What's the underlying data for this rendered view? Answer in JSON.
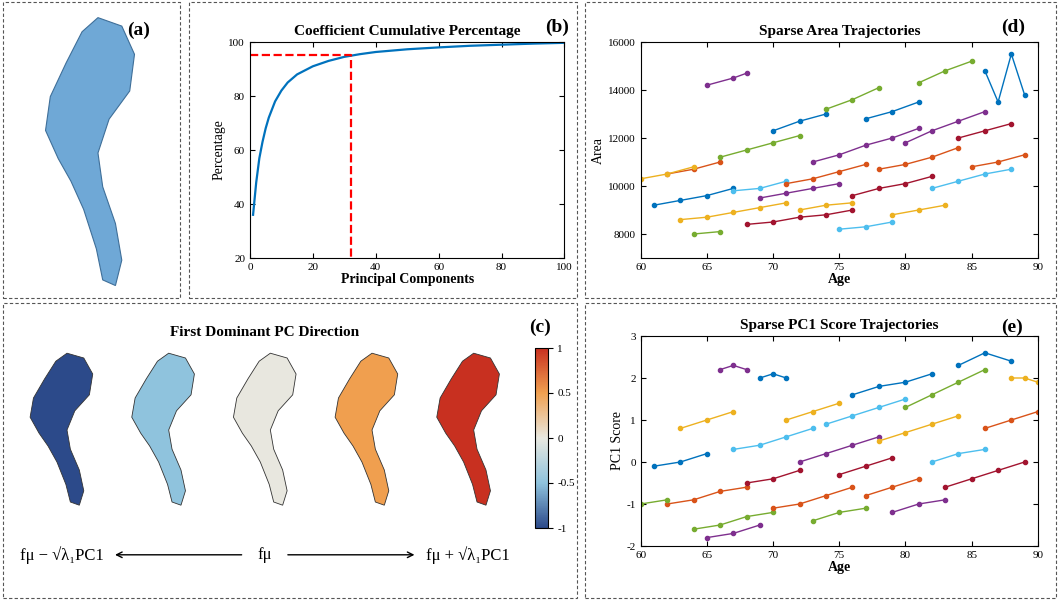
{
  "chart_data": [
    {
      "type": "mesh",
      "annotations": [
        "(a)"
      ],
      "color": "#6fa8d6"
    },
    {
      "type": "line",
      "title": "Coefficient Cumulative Percentage",
      "annotations": [
        "(b)"
      ],
      "x_label": "Principal Components",
      "y_label": "Percentage",
      "xlim": [
        0,
        100
      ],
      "xticks": [
        0,
        20,
        40,
        60,
        80,
        100
      ],
      "ylim": [
        20,
        100
      ],
      "yticks": [
        20,
        40,
        60,
        80,
        100
      ],
      "grid": false,
      "series": [
        {
          "color": "#0072BD",
          "line_style": "solid",
          "x": [
            1,
            2,
            3,
            4,
            5,
            6,
            8,
            10,
            12,
            15,
            20,
            25,
            30,
            35,
            40,
            50,
            60,
            70,
            80,
            90,
            100
          ],
          "values": [
            36,
            48,
            57,
            63,
            68,
            72,
            78,
            82,
            85,
            88,
            91,
            93,
            94.5,
            95.5,
            96.3,
            97.3,
            98,
            98.6,
            99,
            99.4,
            99.7
          ]
        },
        {
          "color": "#ff0000",
          "line_style": "dashed",
          "x": [
            0,
            32,
            32
          ],
          "values": [
            95,
            95,
            20
          ]
        }
      ]
    },
    {
      "type": "line",
      "title": "Sparse Area Trajectories",
      "annotations": [
        "(d)"
      ],
      "x_label": "Age",
      "y_label": "Area",
      "marker": "o",
      "xlim": [
        60,
        90
      ],
      "xticks": [
        60,
        65,
        70,
        75,
        80,
        85,
        90
      ],
      "ylim": [
        7000,
        16000
      ],
      "yticks": [
        8000,
        10000,
        12000,
        14000,
        16000
      ],
      "grid": false,
      "series": [
        {
          "color": "#0072BD",
          "x": [
            61,
            63,
            65,
            67
          ],
          "values": [
            9200,
            9400,
            9600,
            9900
          ]
        },
        {
          "color": "#D95319",
          "x": [
            62,
            64,
            66
          ],
          "values": [
            10500,
            10700,
            11000
          ]
        },
        {
          "color": "#EDB120",
          "x": [
            63,
            65,
            67,
            69,
            71
          ],
          "values": [
            8600,
            8700,
            8900,
            9100,
            9300
          ]
        },
        {
          "color": "#7E2F8E",
          "x": [
            65,
            67,
            68
          ],
          "values": [
            14200,
            14500,
            14700
          ]
        },
        {
          "color": "#77AC30",
          "x": [
            66,
            68,
            70,
            72
          ],
          "values": [
            11200,
            11500,
            11800,
            12100
          ]
        },
        {
          "color": "#4DBEEE",
          "x": [
            67,
            69,
            71
          ],
          "values": [
            9800,
            9900,
            10200
          ]
        },
        {
          "color": "#A2142F",
          "x": [
            68,
            70,
            72,
            74,
            76
          ],
          "values": [
            8400,
            8500,
            8700,
            8800,
            9000
          ]
        },
        {
          "color": "#0072BD",
          "x": [
            70,
            72,
            74
          ],
          "values": [
            12300,
            12700,
            13000
          ]
        },
        {
          "color": "#D95319",
          "x": [
            71,
            73,
            75,
            77
          ],
          "values": [
            10100,
            10300,
            10600,
            10900
          ]
        },
        {
          "color": "#EDB120",
          "x": [
            72,
            74,
            76
          ],
          "values": [
            9000,
            9200,
            9300
          ]
        },
        {
          "color": "#7E2F8E",
          "x": [
            73,
            75,
            77,
            79,
            81
          ],
          "values": [
            11000,
            11300,
            11700,
            12000,
            12400
          ]
        },
        {
          "color": "#77AC30",
          "x": [
            74,
            76,
            78
          ],
          "values": [
            13200,
            13600,
            14100
          ]
        },
        {
          "color": "#4DBEEE",
          "x": [
            75,
            77,
            79
          ],
          "values": [
            8200,
            8300,
            8500
          ]
        },
        {
          "color": "#A2142F",
          "x": [
            76,
            78,
            80,
            82
          ],
          "values": [
            9600,
            9900,
            10100,
            10400
          ]
        },
        {
          "color": "#0072BD",
          "x": [
            77,
            79,
            81
          ],
          "values": [
            12800,
            13100,
            13500
          ]
        },
        {
          "color": "#D95319",
          "x": [
            78,
            80,
            82,
            84
          ],
          "values": [
            10700,
            10900,
            11200,
            11600
          ]
        },
        {
          "color": "#EDB120",
          "x": [
            79,
            81,
            83
          ],
          "values": [
            8800,
            9000,
            9200
          ]
        },
        {
          "color": "#7E2F8E",
          "x": [
            80,
            82,
            84,
            86
          ],
          "values": [
            11800,
            12300,
            12700,
            13100
          ]
        },
        {
          "color": "#77AC30",
          "x": [
            81,
            83,
            85
          ],
          "values": [
            14300,
            14800,
            15200
          ]
        },
        {
          "color": "#4DBEEE",
          "x": [
            82,
            84,
            86,
            88
          ],
          "values": [
            9900,
            10200,
            10500,
            10700
          ]
        },
        {
          "color": "#A2142F",
          "x": [
            84,
            86,
            88
          ],
          "values": [
            12000,
            12300,
            12600
          ]
        },
        {
          "color": "#0072BD",
          "x": [
            86,
            87,
            88,
            89
          ],
          "values": [
            14800,
            13500,
            15500,
            13800
          ]
        },
        {
          "color": "#D95319",
          "x": [
            85,
            87,
            89
          ],
          "values": [
            10800,
            11000,
            11300
          ]
        },
        {
          "color": "#EDB120",
          "x": [
            60,
            62,
            64
          ],
          "values": [
            10300,
            10500,
            10800
          ]
        },
        {
          "color": "#7E2F8E",
          "x": [
            69,
            71,
            73,
            75
          ],
          "values": [
            9500,
            9700,
            9900,
            10100
          ]
        },
        {
          "color": "#77AC30",
          "x": [
            64,
            66
          ],
          "values": [
            8000,
            8100
          ]
        }
      ]
    },
    {
      "type": "shape_sequence",
      "title": "First Dominant PC Direction",
      "annotations": [
        "(c)"
      ],
      "categories": [
        "fμ − √λ₁PC1",
        null,
        "fμ",
        null,
        "fμ + √λ₁PC1"
      ],
      "values": [
        -1,
        -0.5,
        0,
        0.5,
        1
      ],
      "colorbar": {
        "range": [
          -1,
          1
        ],
        "ticks": [
          -1,
          -0.5,
          0,
          0.5,
          1
        ]
      }
    },
    {
      "type": "line",
      "title": "Sparse PC1 Score Trajectories",
      "annotations": [
        "(e)"
      ],
      "x_label": "Age",
      "y_label": "PC1 Score",
      "marker": "o",
      "xlim": [
        60,
        90
      ],
      "xticks": [
        60,
        65,
        70,
        75,
        80,
        85,
        90
      ],
      "ylim": [
        -2,
        3
      ],
      "yticks": [
        -2,
        -1,
        0,
        1,
        2,
        3
      ],
      "grid": false,
      "series": [
        {
          "color": "#0072BD",
          "x": [
            61,
            63,
            65
          ],
          "values": [
            -0.1,
            0.0,
            0.2
          ]
        },
        {
          "color": "#D95319",
          "x": [
            62,
            64,
            66,
            68
          ],
          "values": [
            -1.0,
            -0.9,
            -0.7,
            -0.6
          ]
        },
        {
          "color": "#EDB120",
          "x": [
            63,
            65,
            67
          ],
          "values": [
            0.8,
            1.0,
            1.2
          ]
        },
        {
          "color": "#7E2F8E",
          "x": [
            66,
            67,
            68
          ],
          "values": [
            2.2,
            2.3,
            2.2
          ]
        },
        {
          "color": "#77AC30",
          "x": [
            64,
            66,
            68,
            70
          ],
          "values": [
            -1.6,
            -1.5,
            -1.3,
            -1.2
          ]
        },
        {
          "color": "#4DBEEE",
          "x": [
            67,
            69,
            71,
            73
          ],
          "values": [
            0.3,
            0.4,
            0.6,
            0.8
          ]
        },
        {
          "color": "#A2142F",
          "x": [
            68,
            70,
            72
          ],
          "values": [
            -0.5,
            -0.4,
            -0.2
          ]
        },
        {
          "color": "#0072BD",
          "x": [
            69,
            70,
            71
          ],
          "values": [
            2.0,
            2.1,
            2.0
          ]
        },
        {
          "color": "#D95319",
          "x": [
            70,
            72,
            74,
            76
          ],
          "values": [
            -1.1,
            -1.0,
            -0.8,
            -0.6
          ]
        },
        {
          "color": "#EDB120",
          "x": [
            71,
            73,
            75
          ],
          "values": [
            1.0,
            1.2,
            1.4
          ]
        },
        {
          "color": "#7E2F8E",
          "x": [
            72,
            74,
            76,
            78
          ],
          "values": [
            0.0,
            0.2,
            0.4,
            0.6
          ]
        },
        {
          "color": "#77AC30",
          "x": [
            73,
            75,
            77
          ],
          "values": [
            -1.4,
            -1.2,
            -1.1
          ]
        },
        {
          "color": "#4DBEEE",
          "x": [
            74,
            76,
            78,
            80
          ],
          "values": [
            0.9,
            1.1,
            1.3,
            1.5
          ]
        },
        {
          "color": "#A2142F",
          "x": [
            75,
            77,
            79
          ],
          "values": [
            -0.3,
            -0.1,
            0.1
          ]
        },
        {
          "color": "#0072BD",
          "x": [
            76,
            78,
            80,
            82
          ],
          "values": [
            1.6,
            1.8,
            1.9,
            2.1
          ]
        },
        {
          "color": "#D95319",
          "x": [
            77,
            79,
            81
          ],
          "values": [
            -0.8,
            -0.6,
            -0.4
          ]
        },
        {
          "color": "#EDB120",
          "x": [
            78,
            80,
            82,
            84
          ],
          "values": [
            0.5,
            0.7,
            0.9,
            1.1
          ]
        },
        {
          "color": "#7E2F8E",
          "x": [
            79,
            81,
            83
          ],
          "values": [
            -1.2,
            -1.0,
            -0.9
          ]
        },
        {
          "color": "#77AC30",
          "x": [
            80,
            82,
            84,
            86
          ],
          "values": [
            1.3,
            1.6,
            1.9,
            2.2
          ]
        },
        {
          "color": "#4DBEEE",
          "x": [
            82,
            84,
            86
          ],
          "values": [
            0.0,
            0.2,
            0.3
          ]
        },
        {
          "color": "#A2142F",
          "x": [
            83,
            85,
            87,
            89
          ],
          "values": [
            -0.6,
            -0.4,
            -0.2,
            0.0
          ]
        },
        {
          "color": "#0072BD",
          "x": [
            84,
            86,
            88
          ],
          "values": [
            2.3,
            2.6,
            2.4
          ]
        },
        {
          "color": "#D95319",
          "x": [
            86,
            88,
            90
          ],
          "values": [
            0.8,
            1.0,
            1.2
          ]
        },
        {
          "color": "#EDB120",
          "x": [
            88,
            89,
            90
          ],
          "values": [
            2.0,
            2.0,
            1.9
          ]
        },
        {
          "color": "#7E2F8E",
          "x": [
            65,
            67,
            69
          ],
          "values": [
            -1.8,
            -1.7,
            -1.5
          ]
        },
        {
          "color": "#77AC30",
          "x": [
            60,
            62
          ],
          "values": [
            -1.0,
            -0.9
          ]
        }
      ]
    }
  ]
}
